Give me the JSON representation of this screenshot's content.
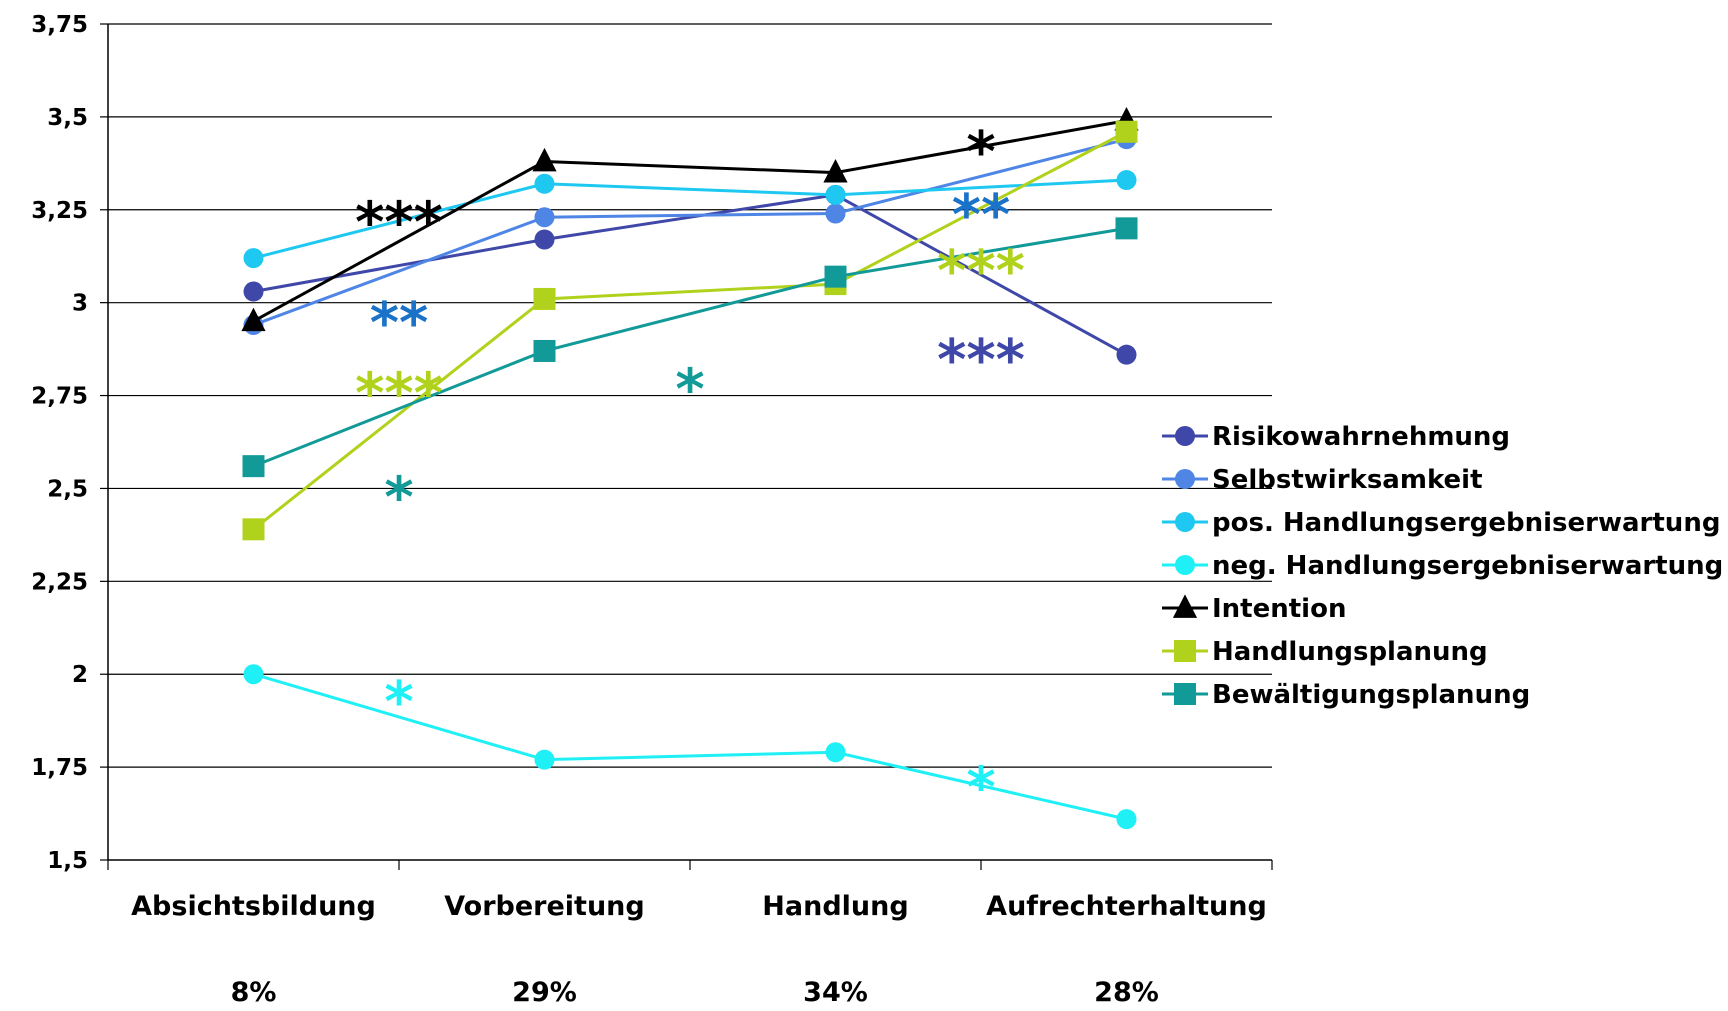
{
  "chart_data": {
    "type": "line",
    "categories": [
      "Absichtsbildung",
      "Vorbereitung",
      "Handlung",
      "Aufrechterhaltung"
    ],
    "percentages": [
      "8%",
      "29%",
      "34%",
      "28%"
    ],
    "y_ticks": [
      "1,5",
      "1,75",
      "2",
      "2,25",
      "2,5",
      "2,75",
      "3",
      "3,25",
      "3,5",
      "3,75"
    ],
    "ylim": [
      1.5,
      3.75
    ],
    "grid": true,
    "legend_position": "right",
    "series": [
      {
        "name": "Risikowahrnehmung",
        "values": [
          3.03,
          3.17,
          3.29,
          2.86
        ],
        "color": "#3f48a8",
        "marker": "circle"
      },
      {
        "name": "Selbstwirksamkeit",
        "values": [
          2.94,
          3.23,
          3.24,
          3.44
        ],
        "color": "#4f86e6",
        "marker": "circle"
      },
      {
        "name": "pos. Handlungsergebniserwartung",
        "values": [
          3.12,
          3.32,
          3.29,
          3.33
        ],
        "color": "#1ec8f0",
        "marker": "circle"
      },
      {
        "name": "neg. Handlungsergebniserwartung",
        "values": [
          2.0,
          1.77,
          1.79,
          1.61
        ],
        "color": "#1ef0f6",
        "marker": "circle"
      },
      {
        "name": "Intention",
        "values": [
          2.95,
          3.38,
          3.35,
          3.49
        ],
        "color": "#000000",
        "marker": "triangle"
      },
      {
        "name": "Handlungsplanung",
        "values": [
          2.39,
          3.01,
          3.05,
          3.46
        ],
        "color": "#b0d21c",
        "marker": "square"
      },
      {
        "name": "Bewältigungsplanung",
        "values": [
          2.56,
          2.87,
          3.07,
          3.2
        ],
        "color": "#129a98",
        "marker": "square"
      }
    ],
    "annotations": [
      {
        "text": "***",
        "between": [
          0,
          1
        ],
        "y": 3.24,
        "color": "#000000"
      },
      {
        "text": "**",
        "between": [
          0,
          1
        ],
        "y": 2.97,
        "color": "#1a73c8"
      },
      {
        "text": "***",
        "between": [
          0,
          1
        ],
        "y": 2.78,
        "color": "#b0d21c"
      },
      {
        "text": "*",
        "between": [
          0,
          1
        ],
        "y": 2.5,
        "color": "#129a98"
      },
      {
        "text": "*",
        "between": [
          0,
          1
        ],
        "y": 1.95,
        "color": "#1ef0f6"
      },
      {
        "text": "*",
        "between": [
          1,
          2
        ],
        "y": 2.79,
        "color": "#129a98"
      },
      {
        "text": "*",
        "between": [
          2,
          3
        ],
        "y": 3.43,
        "color": "#000000"
      },
      {
        "text": "**",
        "between": [
          2,
          3
        ],
        "y": 3.26,
        "color": "#1a73c8"
      },
      {
        "text": "***",
        "between": [
          2,
          3
        ],
        "y": 3.11,
        "color": "#b0d21c"
      },
      {
        "text": "***",
        "between": [
          2,
          3
        ],
        "y": 2.87,
        "color": "#3f48a8"
      },
      {
        "text": "*",
        "between": [
          2,
          3
        ],
        "y": 1.72,
        "color": "#1ef0f6"
      }
    ]
  }
}
